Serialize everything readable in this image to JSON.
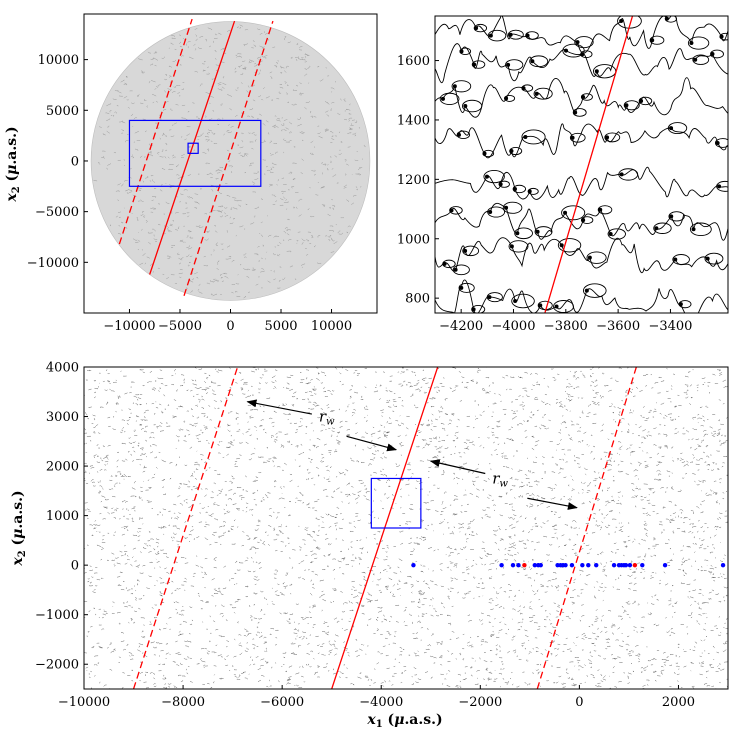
{
  "chart_data": [
    {
      "id": "overview",
      "type": "scatter",
      "title": "",
      "xlabel": "",
      "ylabel": "x_2 (μ.a.s.)",
      "xlim": [
        -14500,
        14500
      ],
      "ylim": [
        -15000,
        14500
      ],
      "xticks": [
        -10000,
        -5000,
        0,
        5000,
        10000
      ],
      "yticks": [
        -10000,
        -5000,
        0,
        5000,
        10000
      ],
      "xtick_labels": [
        "−10000",
        "−5000",
        "0",
        "5000",
        "10000"
      ],
      "ytick_labels": [
        "−10000",
        "−5000",
        "0",
        "5000",
        "10000"
      ],
      "caustic_disk_radius": 13800,
      "lines": [
        {
          "style": "solid",
          "color": "#ff0000",
          "points": [
            [
              -8000,
              -11200
            ],
            [
              400,
              13800
            ]
          ]
        },
        {
          "style": "dashed",
          "color": "#ff0000",
          "points": [
            [
              -11000,
              -8200
            ],
            [
              -3800,
              14000
            ]
          ]
        },
        {
          "style": "dashed",
          "color": "#ff0000",
          "points": [
            [
              -4600,
              -13300
            ],
            [
              4200,
              13800
            ]
          ]
        }
      ],
      "boxes": [
        {
          "color": "#0000ff",
          "x": [
            -10000,
            3000
          ],
          "y": [
            -2500,
            4000
          ]
        },
        {
          "color": "#0000ff",
          "x": [
            -4200,
            -3200
          ],
          "y": [
            750,
            1750
          ]
        }
      ]
    },
    {
      "id": "zoom",
      "type": "line",
      "title": "",
      "xlabel": "",
      "ylabel": "",
      "xlim": [
        -4300,
        -3180
      ],
      "ylim": [
        750,
        1750
      ],
      "xticks": [
        -4200,
        -4000,
        -3800,
        -3600,
        -3400
      ],
      "yticks": [
        800,
        1000,
        1200,
        1400,
        1600
      ],
      "xtick_labels": [
        "−4200",
        "−4000",
        "−3800",
        "−3600",
        "−3400"
      ],
      "ytick_labels": [
        "800",
        "1000",
        "1200",
        "1400",
        "1600"
      ],
      "lines": [
        {
          "style": "solid",
          "color": "#ff0000",
          "points": [
            [
              -3880,
              750
            ],
            [
              -3545,
              1750
            ]
          ]
        }
      ]
    },
    {
      "id": "strip",
      "type": "scatter",
      "title": "",
      "xlabel": "x_1 (μ.a.s.)",
      "ylabel": "x_2 (μ.a.s.)",
      "xlim": [
        -10000,
        3000
      ],
      "ylim": [
        -2500,
        4000
      ],
      "xticks": [
        -10000,
        -8000,
        -6000,
        -4000,
        -2000,
        0,
        2000
      ],
      "yticks": [
        -2000,
        -1000,
        0,
        1000,
        2000,
        3000,
        4000
      ],
      "xtick_labels": [
        "−10000",
        "−8000",
        "−6000",
        "−4000",
        "−2000",
        "0",
        "2000"
      ],
      "ytick_labels": [
        "−2000",
        "−1000",
        "0",
        "1000",
        "2000",
        "3000",
        "4000"
      ],
      "lines": [
        {
          "style": "solid",
          "color": "#ff0000",
          "points": [
            [
              -5000,
              -2500
            ],
            [
              -2860,
              4000
            ]
          ]
        },
        {
          "style": "dashed",
          "color": "#ff0000",
          "points": [
            [
              -9000,
              -2500
            ],
            [
              -6900,
              4000
            ]
          ]
        },
        {
          "style": "dashed",
          "color": "#ff0000",
          "points": [
            [
              -850,
              -2500
            ],
            [
              1150,
              4000
            ]
          ]
        }
      ],
      "boxes": [
        {
          "color": "#0000ff",
          "x": [
            -4200,
            -3200
          ],
          "y": [
            750,
            1750
          ]
        }
      ],
      "annotations": [
        {
          "text": "r_w",
          "at": [
            -5100,
            2900
          ],
          "arrows": [
            [
              [
                -5400,
                3050
              ],
              [
                -6700,
                3300
              ]
            ],
            [
              [
                -4700,
                2600
              ],
              [
                -3700,
                2330
              ]
            ]
          ]
        },
        {
          "text": "r_w",
          "at": [
            -1600,
            1650
          ],
          "arrows": [
            [
              [
                -1900,
                1850
              ],
              [
                -3000,
                2100
              ]
            ],
            [
              [
                -1050,
                1350
              ],
              [
                -50,
                1160
              ]
            ]
          ]
        }
      ],
      "points": {
        "blue": [
          [
            -3350,
            0
          ],
          [
            -1570,
            0
          ],
          [
            -1340,
            0
          ],
          [
            -1230,
            0
          ],
          [
            -900,
            0
          ],
          [
            -830,
            0
          ],
          [
            -780,
            0
          ],
          [
            -440,
            0
          ],
          [
            -380,
            0
          ],
          [
            -330,
            0
          ],
          [
            -280,
            0
          ],
          [
            -150,
            0
          ],
          [
            60,
            0
          ],
          [
            180,
            0
          ],
          [
            340,
            0
          ],
          [
            700,
            0
          ],
          [
            800,
            0
          ],
          [
            850,
            0
          ],
          [
            900,
            0
          ],
          [
            940,
            0
          ],
          [
            1020,
            0
          ],
          [
            1270,
            0
          ],
          [
            1730,
            0
          ],
          [
            2900,
            0
          ]
        ],
        "red": [
          [
            -1110,
            0
          ],
          [
            1120,
            0
          ]
        ]
      }
    }
  ]
}
